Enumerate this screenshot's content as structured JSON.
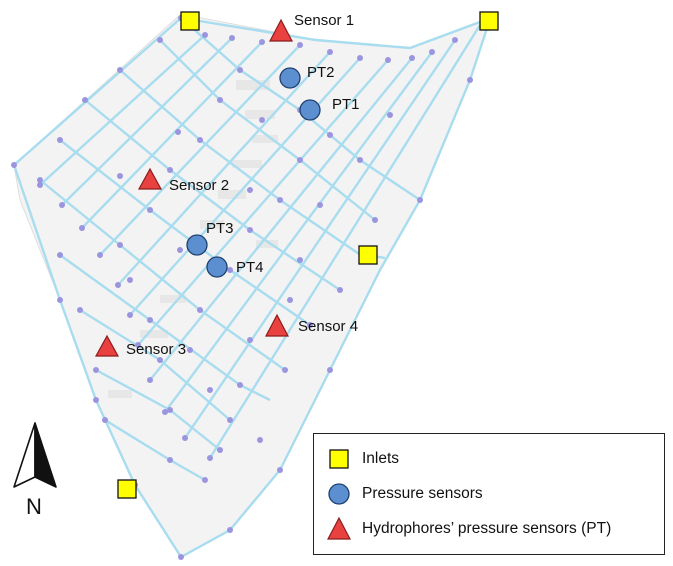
{
  "colors": {
    "pipe": "#a8dcef",
    "node": "#9a95de",
    "buildings": "#ededed",
    "inlet_fill": "#ffff00",
    "pressure_fill": "#5b8fd0",
    "hydrophore_fill": "#e94040"
  },
  "map": {
    "inlets": [
      {
        "name": "inlet-nw"
      },
      {
        "name": "inlet-ne"
      },
      {
        "name": "inlet-east"
      },
      {
        "name": "inlet-sw"
      }
    ],
    "sensors": [
      {
        "label": "Sensor 1"
      },
      {
        "label": "Sensor 2"
      },
      {
        "label": "Sensor 3"
      },
      {
        "label": "Sensor 4"
      }
    ],
    "pressure_points": [
      {
        "label": "PT2"
      },
      {
        "label": "PT1"
      },
      {
        "label": "PT3"
      },
      {
        "label": "PT4"
      }
    ]
  },
  "compass": {
    "letter": "N",
    "icon": "north-arrow-icon"
  },
  "legend": {
    "items": [
      {
        "label": "Inlets",
        "icon": "yellow-square-icon"
      },
      {
        "label": "Pressure sensors",
        "icon": "blue-circle-icon"
      },
      {
        "label": "Hydrophores’ pressure sensors (PT)",
        "icon": "red-triangle-icon"
      }
    ]
  }
}
